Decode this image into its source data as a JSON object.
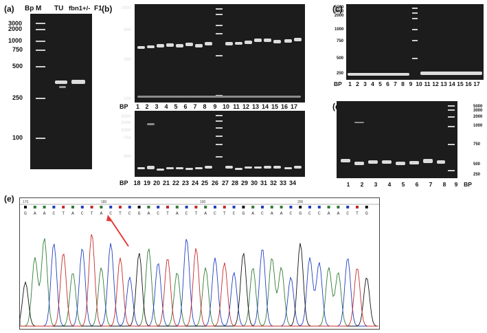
{
  "panels": {
    "a": {
      "letter": "(a)",
      "bp_label": "Bp",
      "lane_labels": [
        "M",
        "TU",
        "fbn1+/-",
        "F1"
      ],
      "sizes": [
        "3000",
        "2000",
        "1000",
        "750",
        "500",
        "250",
        "100"
      ]
    },
    "b": {
      "letter": "(b)",
      "top_sizes": [
        "1000",
        "500",
        "250",
        "100"
      ],
      "bottom_sizes": [
        "3000",
        "2000",
        "1000",
        "750",
        "500"
      ],
      "top_lane_labels": [
        "BP",
        "1",
        "2",
        "3",
        "4",
        "5",
        "6",
        "7",
        "8",
        "9",
        "10",
        "11",
        "12",
        "13",
        "14",
        "15",
        "16",
        "17"
      ],
      "bottom_lane_labels": [
        "BP",
        "18",
        "19",
        "20",
        "21",
        "22",
        "23",
        "24",
        "25",
        "26",
        "27",
        "28",
        "29",
        "30",
        "31",
        "32",
        "33",
        "34"
      ]
    },
    "c": {
      "letter": "(c)",
      "sizes": [
        "5000",
        "3000",
        "2000",
        "1000",
        "750",
        "500",
        "250"
      ],
      "lane_labels": [
        "BP",
        "1",
        "2",
        "3",
        "4",
        "5",
        "6",
        "7",
        "8",
        "9",
        "10",
        "11",
        "12",
        "13",
        "14",
        "15",
        "16",
        "17"
      ]
    },
    "d": {
      "letter": "(d)",
      "sizes": [
        "5000",
        "3000",
        "2000",
        "1000",
        "750",
        "500",
        "250"
      ],
      "lane_labels": [
        "1",
        "2",
        "3",
        "4",
        "5",
        "6",
        "7",
        "8",
        "9",
        "BP"
      ]
    },
    "e": {
      "letter": "(e)",
      "ruler": [
        "170",
        "180",
        "190",
        "200"
      ],
      "sequence": [
        "G",
        "A",
        "A",
        "C",
        "T",
        "A",
        "C",
        "T",
        "A",
        "C",
        "T",
        "C",
        "G",
        "A",
        "C",
        "T",
        "A",
        "C",
        "T",
        "A",
        "C",
        "T",
        "C",
        "G",
        "A",
        "C",
        "A",
        "A",
        "C",
        "G",
        "C",
        "C",
        "A",
        "A",
        "C",
        "T",
        "G"
      ]
    }
  },
  "colors": {
    "gel": "#1c1c1c",
    "band": "#dcdcdc",
    "trace_a": "#2e7d32",
    "trace_c": "#1f3fbf",
    "trace_g": "#111111",
    "trace_t": "#c62828",
    "arrow": "#e53935"
  }
}
